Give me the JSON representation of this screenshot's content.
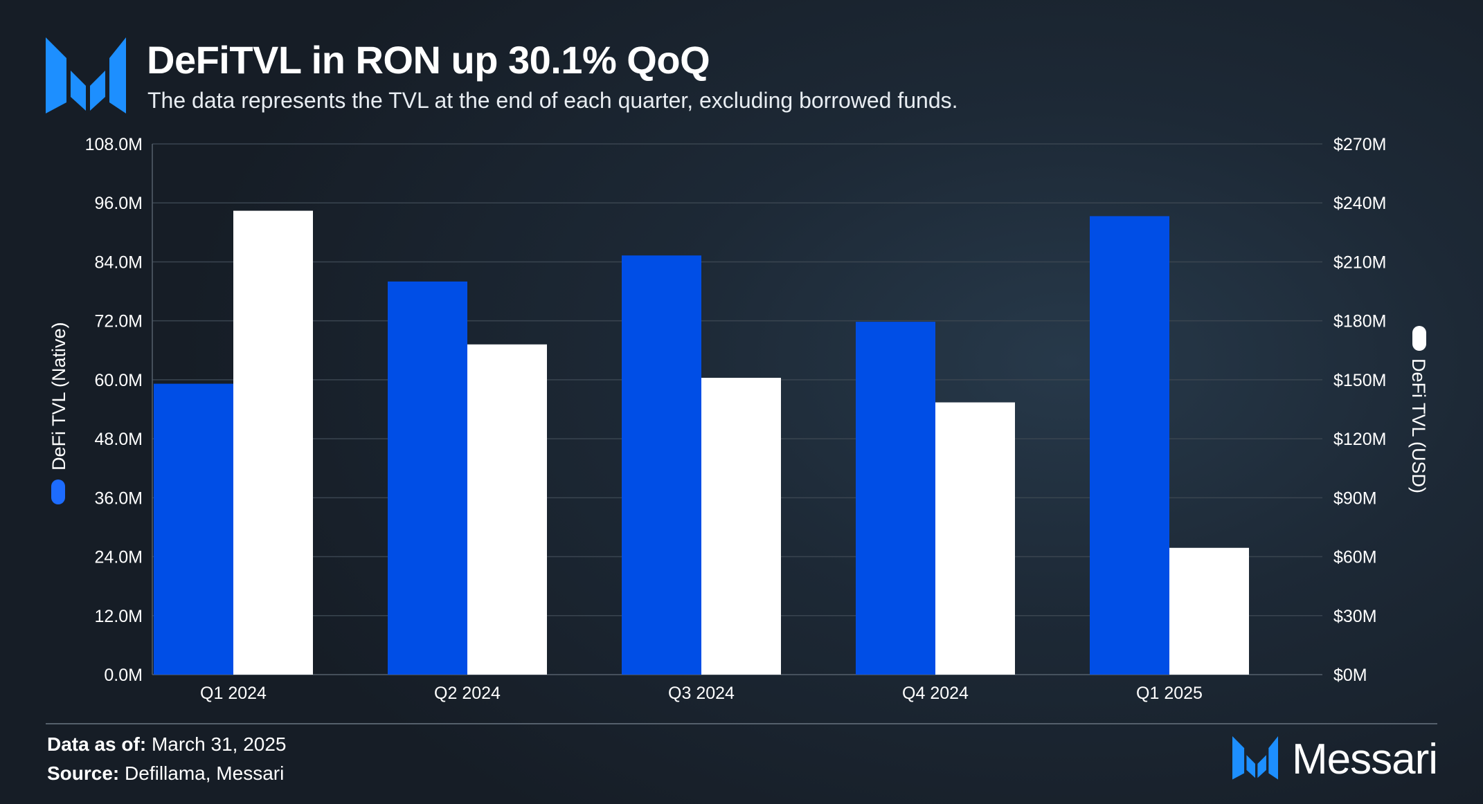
{
  "header": {
    "title": "DeFiTVL in RON up 30.1% QoQ",
    "subtitle": "The data represents the TVL at the end of each quarter, excluding borrowed funds.",
    "logo_icon": "messari-m-logo-icon"
  },
  "colors": {
    "native_series": "#004ee6",
    "usd_series": "#ffffff",
    "grid": "#3a4550",
    "tick_text": "#ffffff"
  },
  "chart_data": {
    "type": "bar",
    "categories": [
      "Q1 2024",
      "Q2 2024",
      "Q3 2024",
      "Q4 2024",
      "Q1 2025"
    ],
    "series": [
      {
        "name": "DeFi TVL (Native)",
        "axis": "left",
        "values": [
          59.2,
          80.0,
          85.3,
          71.8,
          93.3
        ]
      },
      {
        "name": "DeFi TVL (USD)",
        "axis": "right",
        "values": [
          236,
          168,
          151,
          138.5,
          64.5
        ]
      }
    ],
    "title": "DeFiTVL in RON up 30.1% QoQ",
    "ylabel_left": "DeFi TVL (Native)",
    "ylabel_right": "DeFi TVL (USD)",
    "ylim_left": [
      0,
      108
    ],
    "ylim_right": [
      0,
      270
    ],
    "yticks_left": [
      "0.0M",
      "12.0M",
      "24.0M",
      "36.0M",
      "48.0M",
      "60.0M",
      "72.0M",
      "84.0M",
      "96.0M",
      "108.0M"
    ],
    "yticks_right": [
      "$0M",
      "$30M",
      "$60M",
      "$90M",
      "$120M",
      "$150M",
      "$180M",
      "$210M",
      "$240M",
      "$270M"
    ],
    "grid": true,
    "legend_placement": "vertical axis titles"
  },
  "footer": {
    "date_label": "Data as of:",
    "date_value": "March 31, 2025",
    "source_label": "Source:",
    "source_value": "Defillama, Messari",
    "brand_name": "Messari",
    "brand_icon": "messari-m-logo-icon"
  }
}
